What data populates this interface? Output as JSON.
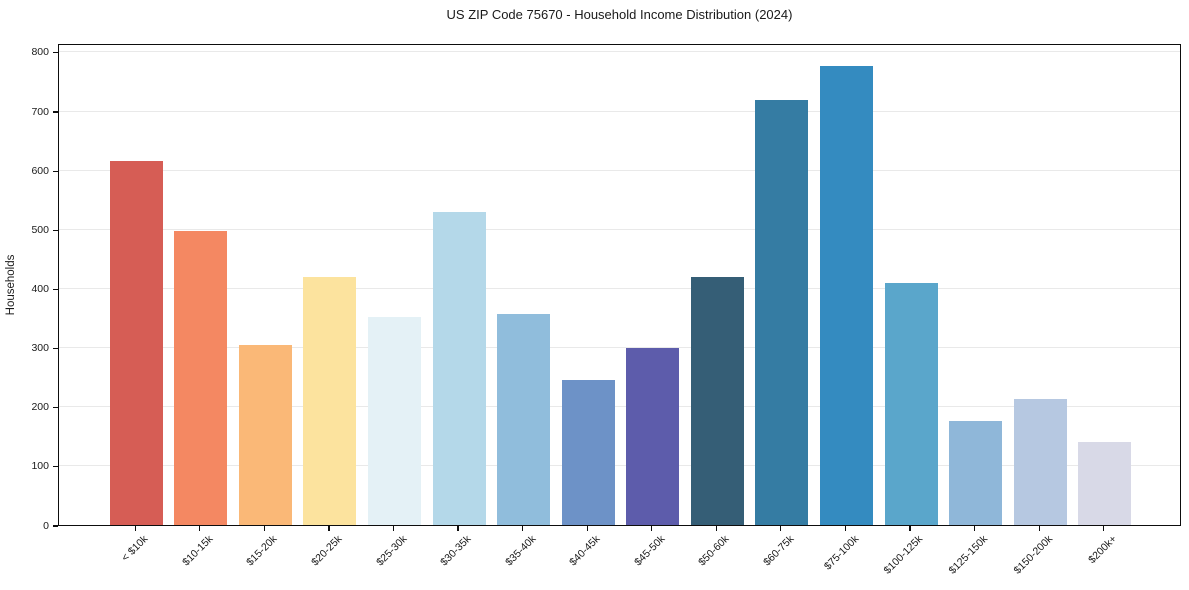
{
  "chart_data": {
    "type": "bar",
    "title": "US ZIP Code 75670 - Household Income Distribution (2024)",
    "xlabel": "",
    "ylabel": "Households",
    "ylim": [
      0,
      815
    ],
    "yticks": [
      0,
      100,
      200,
      300,
      400,
      500,
      600,
      700,
      800
    ],
    "grid": "horizontal",
    "legend": "none",
    "categories": [
      "< $10k",
      "$10-15k",
      "$15-20k",
      "$20-25k",
      "$25-30k",
      "$30-35k",
      "$35-40k",
      "$40-45k",
      "$45-50k",
      "$50-60k",
      "$60-75k",
      "$75-100k",
      "$100-125k",
      "$125-150k",
      "$150-200k",
      "$200k+"
    ],
    "values": [
      616,
      497,
      305,
      420,
      351,
      530,
      357,
      245,
      299,
      420,
      718,
      776,
      410,
      176,
      213,
      140
    ],
    "bar_colors": [
      "#d65d55",
      "#f48862",
      "#fab877",
      "#fce39e",
      "#e4f1f6",
      "#b4d8e9",
      "#90bddc",
      "#6d92c7",
      "#5d5cab",
      "#355e76",
      "#357ca3",
      "#348bc0",
      "#5aa6cb",
      "#8fb7d9",
      "#b6c8e1",
      "#d8d9e7"
    ],
    "colors": {
      "background": "#ffffff",
      "axis": "#0d0d0d",
      "gridline": "#e9e9e9",
      "text": "#1a1a1a"
    }
  }
}
